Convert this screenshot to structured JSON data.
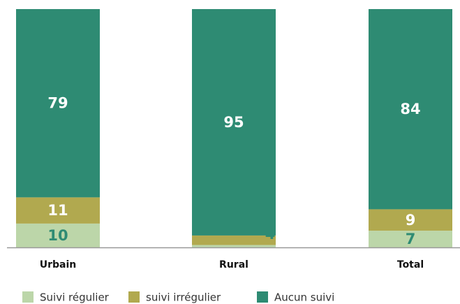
{
  "chart_data": {
    "type": "stacked_bar",
    "categories": [
      "Urbain",
      "Rural",
      "Total"
    ],
    "series": [
      {
        "name": "Suivi régulier",
        "color": "#bcd6a9",
        "label_color": "#2e8b73",
        "values": [
          10,
          1,
          7
        ]
      },
      {
        "name": "suivi irrégulier",
        "color": "#b1a94f",
        "label_color": "#ffffff",
        "values": [
          11,
          4,
          9
        ]
      },
      {
        "name": "Aucun suivi",
        "color": "#2e8b73",
        "label_color": "#ffffff",
        "values": [
          79,
          95,
          84
        ]
      }
    ]
  }
}
